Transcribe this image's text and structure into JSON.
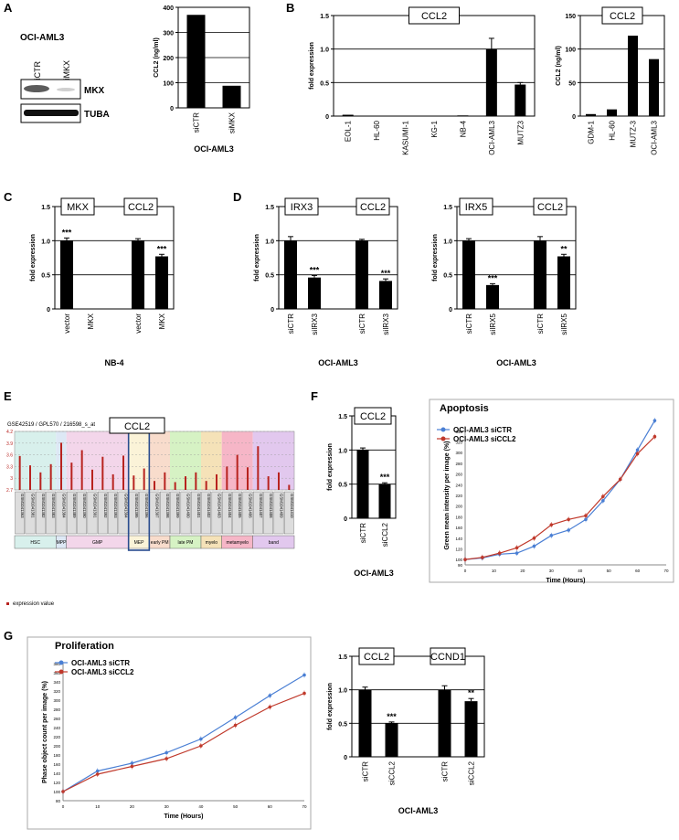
{
  "colors": {
    "bar": "#000000",
    "red": "#c0392b",
    "blue": "#4a7fd4",
    "redDot": "#b8231f"
  },
  "panelA": {
    "letter": "A",
    "cell": "OCI-AML3",
    "lanes": [
      "siCTR",
      "siMKX"
    ],
    "blot_labels": [
      "MKX",
      "TUBA"
    ],
    "chart": {
      "type": "bar",
      "categories": [
        "siCTR",
        "siMKX"
      ],
      "values": [
        370,
        88
      ],
      "ylabel": "CCL2 (ng/ml)",
      "ylim": [
        0,
        400
      ],
      "yticks": [
        "0",
        "100",
        "200",
        "300",
        "400"
      ],
      "xlabel": "OCI-AML3"
    }
  },
  "panelB": {
    "letter": "B",
    "left": {
      "type": "bar",
      "title": "CCL2",
      "categories": [
        "EOL-1",
        "HL-60",
        "KASUMI-1",
        "KG-1",
        "NB-4",
        "OCI-AML3",
        "MUTZ3"
      ],
      "values": [
        0.02,
        0.0,
        0.0,
        0.0,
        0.01,
        1.0,
        0.47
      ],
      "errors": [
        0,
        0,
        0,
        0,
        0,
        0.16,
        0.03
      ],
      "ylabel": "fold expression",
      "ylim": [
        0,
        1.5
      ],
      "yticks": [
        "0",
        "0.5",
        "1.0",
        "1.5"
      ]
    },
    "right": {
      "type": "bar",
      "title": "CCL2",
      "categories": [
        "GDM-1",
        "HL-60",
        "MUTZ-3",
        "OCI-AML3"
      ],
      "values": [
        3,
        10,
        120,
        85
      ],
      "ylabel": "CCL2 (ng/ml)",
      "ylim": [
        0,
        150
      ],
      "yticks": [
        "0",
        "50",
        "100",
        "150"
      ]
    }
  },
  "panelC": {
    "letter": "C",
    "type": "bar",
    "titles": [
      "MKX",
      "CCL2"
    ],
    "categories": [
      "vector",
      "MKX",
      "vector",
      "MKX"
    ],
    "values": [
      1.0,
      0.0,
      1.0,
      0.77
    ],
    "errors": [
      0.04,
      0,
      0.03,
      0.03
    ],
    "sig": [
      "***",
      "",
      "",
      "***"
    ],
    "ylabel": "fold expression",
    "ylim": [
      0,
      1.5
    ],
    "yticks": [
      "0",
      "0.5",
      "1.0",
      "1.5"
    ],
    "xlabel": "NB-4"
  },
  "panelD": {
    "letter": "D",
    "left": {
      "type": "bar",
      "titles": [
        "IRX3",
        "CCL2"
      ],
      "categories": [
        "siCTR",
        "siIRX3",
        "siCTR",
        "siIRX3"
      ],
      "values": [
        1.0,
        0.46,
        1.0,
        0.41
      ],
      "errors": [
        0.06,
        0.03,
        0.02,
        0.03
      ],
      "sig": [
        "",
        "***",
        "",
        "***"
      ],
      "ylabel": "fold expression",
      "ylim": [
        0,
        1.5
      ],
      "yticks": [
        "0",
        "0.5",
        "1.0",
        "1.5"
      ],
      "xlabel": "OCI-AML3"
    },
    "right": {
      "type": "bar",
      "titles": [
        "IRX5",
        "CCL2"
      ],
      "categories": [
        "siCTR",
        "siIRX5",
        "siCTR",
        "siIRX5"
      ],
      "values": [
        1.0,
        0.35,
        1.0,
        0.77
      ],
      "errors": [
        0.03,
        0.02,
        0.06,
        0.03
      ],
      "sig": [
        "",
        "***",
        "",
        "**"
      ],
      "ylabel": "fold expression",
      "ylim": [
        0,
        1.5
      ],
      "yticks": [
        "0",
        "0.5",
        "1.0",
        "1.5"
      ],
      "xlabel": "OCI-AML3"
    }
  },
  "panelE": {
    "letter": "E",
    "header": "GSE42519 / GPL570 / 216598_s_at",
    "title": "CCL2",
    "type": "bar",
    "ylim": [
      2.7,
      4.2
    ],
    "yticks": [
      "2.7",
      "3",
      "3.3",
      "3.6",
      "3.9",
      "4.2"
    ],
    "samples": [
      "GSM1041363",
      "GSM1041381",
      "GSM1041382",
      "GSM1041383",
      "GSM1041384",
      "GSM1041389",
      "GSM1041390",
      "GSM1041391",
      "GSM1041392",
      "GSM1041393",
      "GSM1041394",
      "GSM1041395",
      "GSM1041396",
      "GSM1041397",
      "GSM1041398",
      "GSM1041399",
      "GSM1041400",
      "GSM1041401",
      "GSM1041402",
      "GSM1041403",
      "GSM1041404",
      "GSM1041405",
      "GSM1041406",
      "GSM1041407",
      "GSM1041408",
      "GSM1041409",
      "GSM1041410"
    ],
    "values": [
      3.57,
      3.33,
      3.15,
      3.36,
      3.91,
      3.4,
      3.72,
      3.22,
      3.55,
      3.1,
      3.58,
      3.07,
      3.25,
      2.93,
      3.15,
      2.9,
      3.05,
      3.15,
      2.93,
      3.1,
      3.3,
      3.6,
      3.28,
      3.82,
      3.05,
      3.15,
      2.83
    ],
    "groups": [
      "HSC",
      "MPP",
      "GMP",
      "MEP",
      "early PM",
      "late PM",
      "myelo",
      "metamyelo",
      "band"
    ],
    "legend": "expression value"
  },
  "panelF": {
    "letter": "F",
    "bar": {
      "type": "bar",
      "title": "CCL2",
      "categories": [
        "siCTR",
        "siCCL2"
      ],
      "values": [
        1.0,
        0.5
      ],
      "errors": [
        0.03,
        0.02
      ],
      "sig": [
        "",
        "***"
      ],
      "ylabel": "fold expression",
      "ylim": [
        0,
        1.5
      ],
      "yticks": [
        "0",
        "0.5",
        "1.0",
        "1.5"
      ],
      "xlabel": "OCI-AML3"
    },
    "line": {
      "type": "line",
      "title": "Apoptosis",
      "ylabel": "Green mean intensity per image (%)",
      "xlabel": "Time (Hours)",
      "xlim": [
        0,
        70
      ],
      "ylim": [
        90,
        350
      ],
      "xticks": [
        "0",
        "10",
        "20",
        "30",
        "40",
        "50",
        "60",
        "70"
      ],
      "yticks": [
        "90",
        "100",
        "120",
        "140",
        "160",
        "180",
        "200",
        "220",
        "240",
        "260",
        "280",
        "300",
        "320",
        "340"
      ],
      "x": [
        0,
        6,
        12,
        18,
        24,
        30,
        36,
        42,
        48,
        54,
        60,
        66
      ],
      "series": [
        {
          "name": "OCI-AML3  siCTR",
          "values": [
            100,
            103,
            110,
            112,
            125,
            145,
            155,
            175,
            210,
            250,
            305,
            360
          ]
        },
        {
          "name": "OCI-AML3  siCCL2",
          "values": [
            100,
            104,
            112,
            122,
            140,
            165,
            175,
            182,
            218,
            250,
            298,
            330
          ]
        }
      ]
    }
  },
  "panelG": {
    "letter": "G",
    "line": {
      "type": "line",
      "title": "Proliferation",
      "ylabel": "Phase object count per image (%)",
      "xlabel": "Time (Hours)",
      "xlim": [
        0,
        70
      ],
      "ylim": [
        80,
        380
      ],
      "xticks": [
        "0",
        "10",
        "20",
        "30",
        "40",
        "50",
        "60",
        "70"
      ],
      "yticks": [
        "80",
        "100",
        "120",
        "140",
        "160",
        "180",
        "200",
        "220",
        "240",
        "260",
        "280",
        "300",
        "320",
        "340",
        "360",
        "380"
      ],
      "x": [
        0,
        10,
        20,
        30,
        40,
        50,
        60,
        70
      ],
      "series": [
        {
          "name": "OCI-AML3  siCTR",
          "values": [
            100,
            145,
            162,
            185,
            215,
            262,
            310,
            355
          ]
        },
        {
          "name": "OCI-AML3  siCCL2",
          "values": [
            100,
            138,
            155,
            172,
            200,
            245,
            285,
            315
          ]
        }
      ]
    },
    "bar": {
      "type": "bar",
      "titles": [
        "CCL2",
        "CCND1"
      ],
      "categories": [
        "siCTR",
        "siCCL2",
        "siCTR",
        "siCCL2"
      ],
      "values": [
        1.0,
        0.5,
        1.0,
        0.83
      ],
      "errors": [
        0.04,
        0.02,
        0.06,
        0.04
      ],
      "sig": [
        "",
        "***",
        "",
        "**"
      ],
      "ylabel": "fold expression",
      "ylim": [
        0,
        1.5
      ],
      "yticks": [
        "0",
        "0.5",
        "1.0",
        "1.5"
      ],
      "xlabel": "OCI-AML3"
    }
  }
}
